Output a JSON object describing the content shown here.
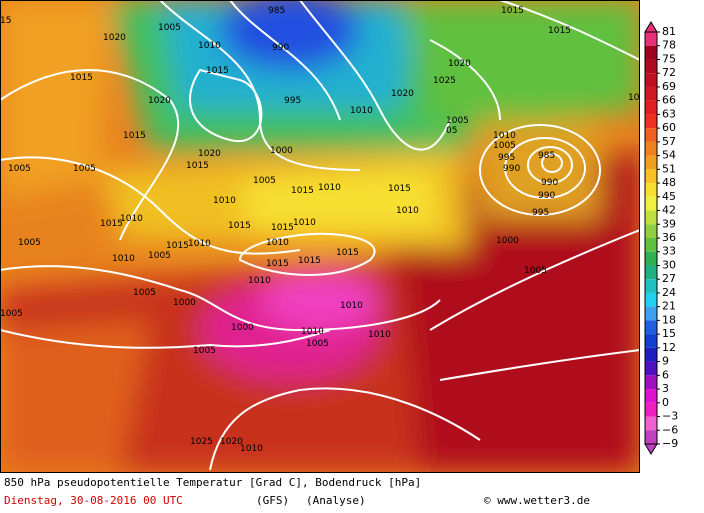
{
  "caption": {
    "title": "850 hPa pseudopotentielle Temperatur [Grad C], Bodendruck [hPa]",
    "date": "Dienstag, 30-08-2016  00 UTC",
    "model": "(GFS)",
    "run": "(Analyse)",
    "credit": "© www.wetter3.de"
  },
  "colorbar": {
    "ticks": [
      81,
      78,
      75,
      72,
      69,
      66,
      63,
      60,
      57,
      54,
      51,
      48,
      45,
      42,
      39,
      36,
      33,
      30,
      27,
      24,
      21,
      18,
      15,
      12,
      9,
      6,
      3,
      0,
      {
        "value": -3,
        "label": "−3"
      },
      {
        "value": -6,
        "label": "−6"
      },
      {
        "value": -9,
        "label": "−9"
      }
    ]
  },
  "isobar_labels": [
    "15",
    "1020",
    "1005",
    "1010",
    "1015",
    "1020",
    "985",
    "990",
    "995",
    "1000",
    "1010",
    "1020",
    "1025",
    "1020",
    "1015",
    "1015",
    "1015",
    "1015",
    "1020",
    "1015",
    "1005",
    "1005",
    "1005",
    "1015",
    "1010",
    "1015",
    "1010",
    "1010",
    "1015",
    "1010",
    "1015",
    "1015",
    "1010",
    "1010",
    "1010",
    "1015",
    "1005",
    "1010",
    "1005",
    "1015",
    "1015",
    "1015",
    "1010",
    "1005",
    "1000",
    "1010",
    "1000",
    "1010",
    "1005",
    "1010",
    "1005",
    "1010",
    "1005",
    "995",
    "990",
    "985",
    "990",
    "990",
    "995",
    "1000",
    "1005",
    "1010",
    "1010",
    "1005",
    "1005",
    "05",
    "1025",
    "1020"
  ]
}
